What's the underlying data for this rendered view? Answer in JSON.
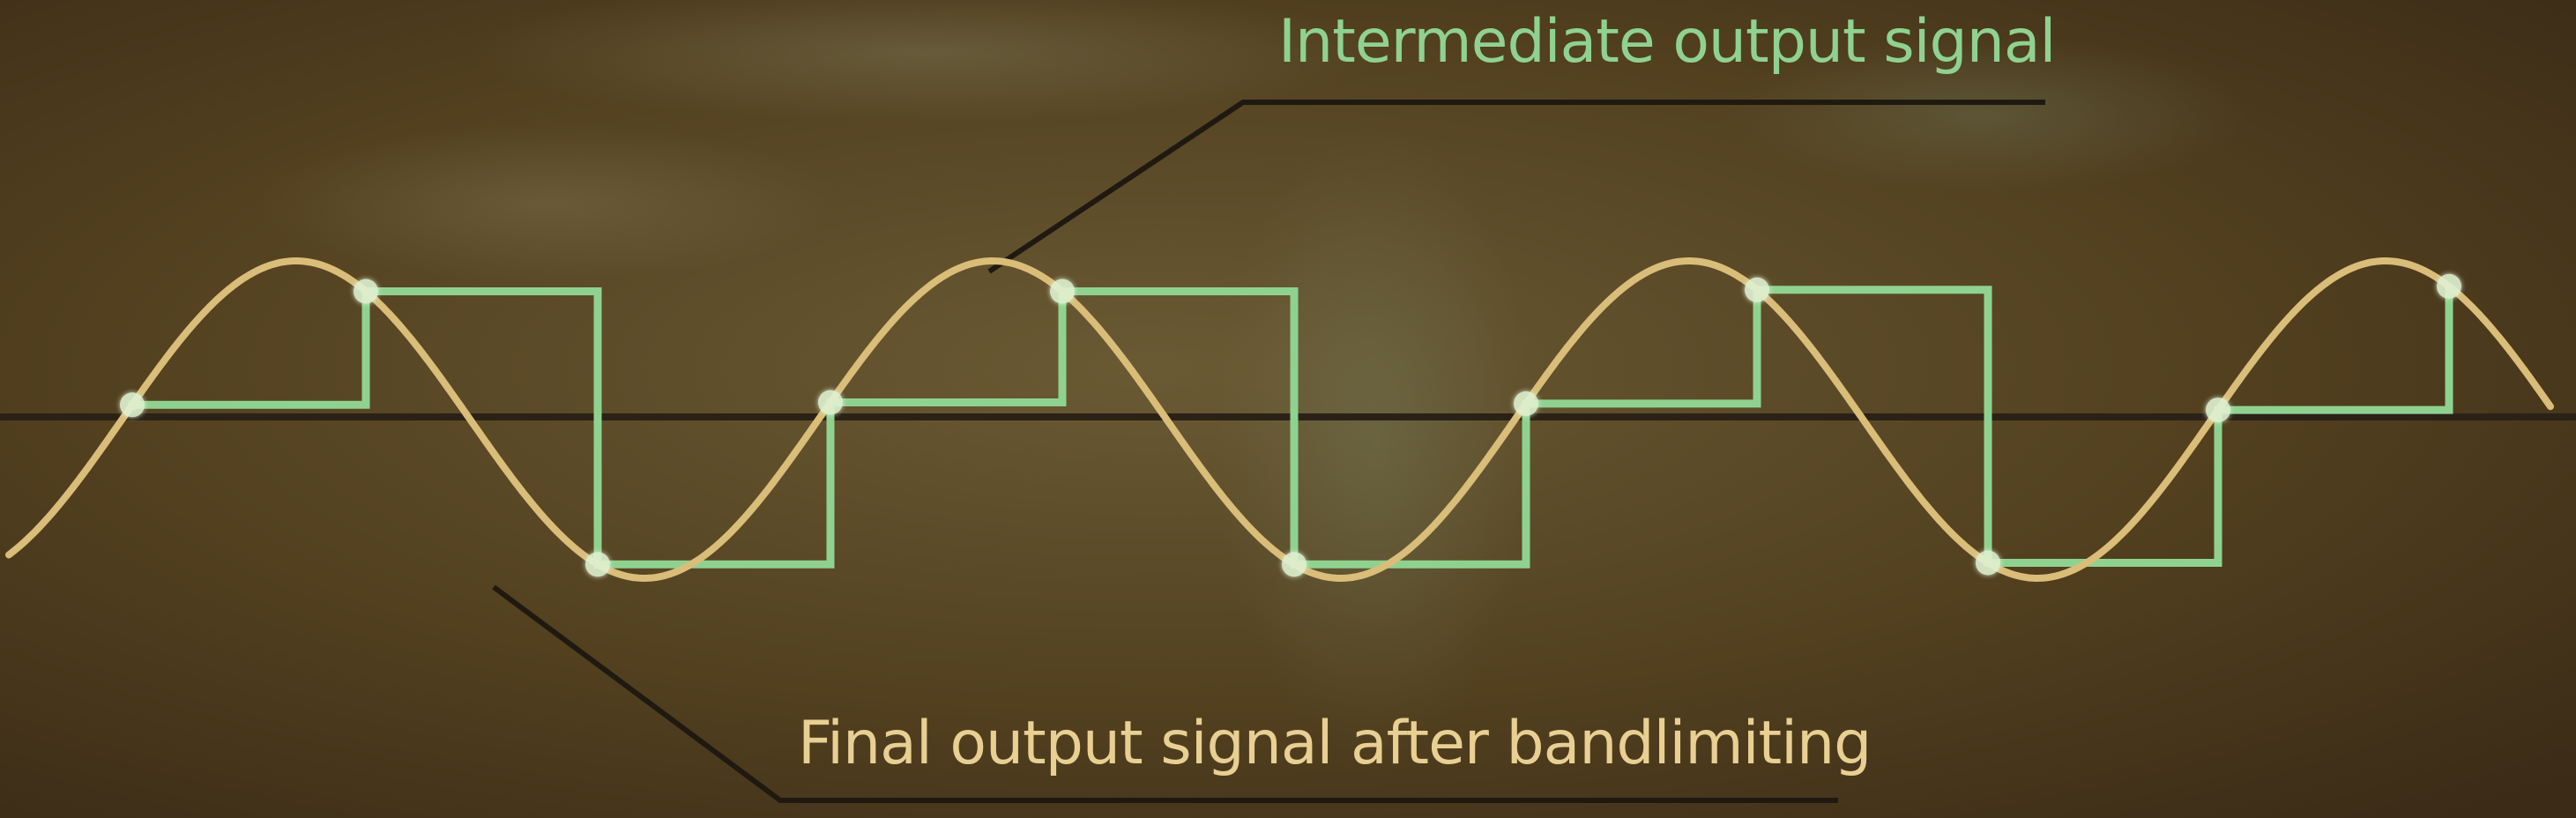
{
  "labels": {
    "intermediate": "Intermediate output signal",
    "final": "Final output signal after bandlimiting"
  },
  "colors": {
    "background": "#4a3a22",
    "axis": "#2a2216",
    "intermediate_signal": "#8fd28f",
    "final_signal": "#d9bd78",
    "sample_point": "#dff2d2",
    "leader_line": "#1f1a10"
  },
  "signals": {
    "final_signal_shape": "sine",
    "intermediate_signal_shape": "sample-and-hold staircase",
    "sample_points_count": 11
  }
}
